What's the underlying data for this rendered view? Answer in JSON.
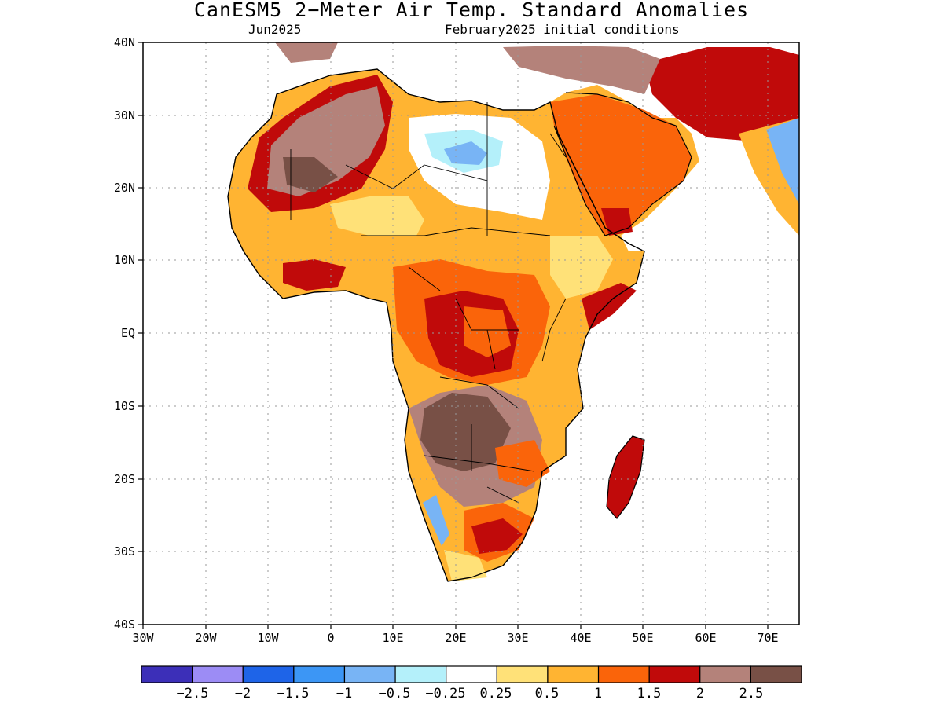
{
  "title": "CanESM5 2−Meter Air Temp. Standard Anomalies",
  "subtitle_left": "Jun2025",
  "subtitle_right": "February2025 initial conditions",
  "map": {
    "lon_range": [
      -30,
      75
    ],
    "lat_range": [
      -40,
      40
    ],
    "lat_labels": [
      "40N",
      "30N",
      "20N",
      "10N",
      "EQ",
      "10S",
      "20S",
      "30S",
      "40S"
    ],
    "lon_labels": [
      "30W",
      "20W",
      "10W",
      "0",
      "10E",
      "20E",
      "30E",
      "40E",
      "50E",
      "60E",
      "70E"
    ],
    "grid": true
  },
  "colorbar": {
    "colors": [
      "#3c2fb8",
      "#9c8cf5",
      "#1e64e8",
      "#3c96f5",
      "#78b4f5",
      "#b4f0fa",
      "#ffffff",
      "#ffe178",
      "#ffb432",
      "#fa640a",
      "#c00a0a",
      "#b4827a",
      "#785046"
    ],
    "labels": [
      "−2.5",
      "−2",
      "−1.5",
      "−1",
      "−0.5",
      "−0.25",
      "0.25",
      "0.5",
      "1",
      "1.5",
      "2",
      "2.5"
    ]
  }
}
